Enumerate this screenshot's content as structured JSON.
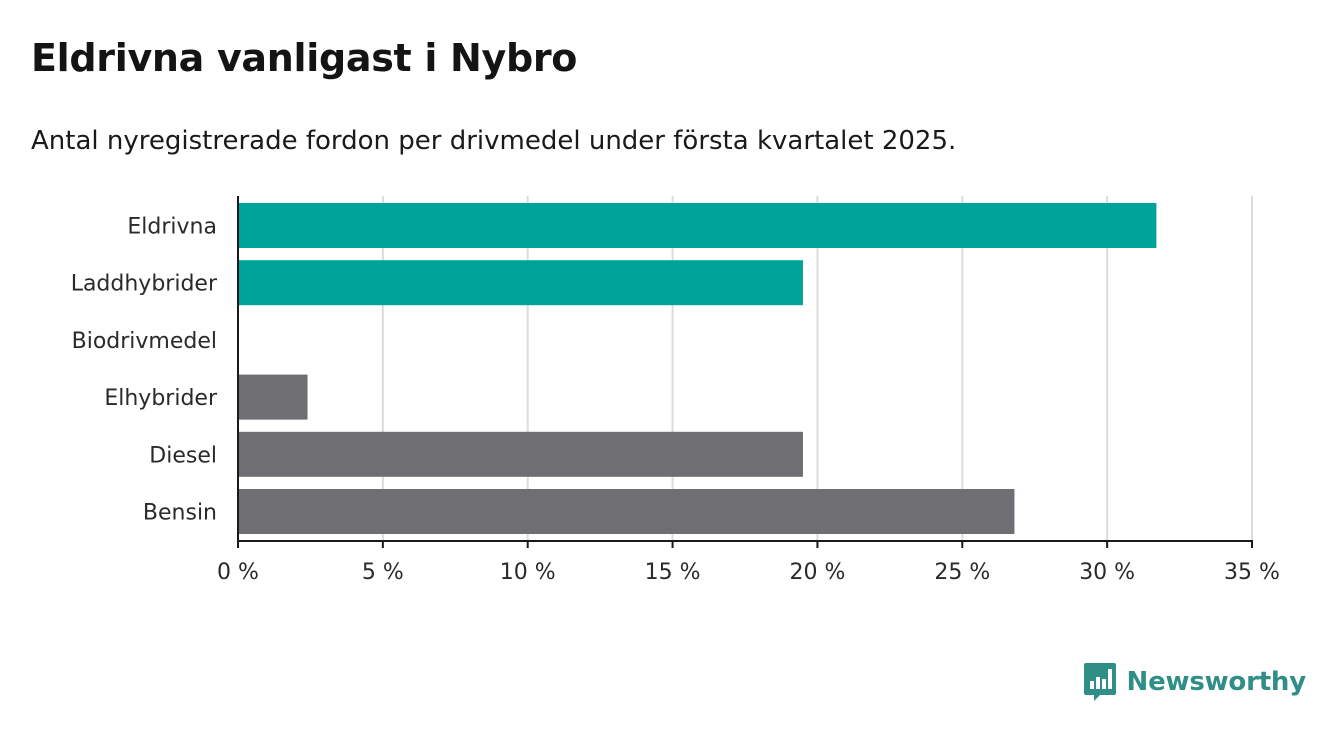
{
  "title": "Eldrivna vanligast i Nybro",
  "subtitle": "Antal nyregistrerade fordon per drivmedel under första kvartalet 2025.",
  "brand": {
    "name": "Newsworthy",
    "icon": "newsworthy-logo-icon",
    "color": "#2f8f86"
  },
  "chart_data": {
    "type": "bar",
    "orientation": "horizontal",
    "categories": [
      "Eldrivna",
      "Laddhybrider",
      "Biodrivmedel",
      "Elhybrider",
      "Diesel",
      "Bensin"
    ],
    "values": [
      31.7,
      19.5,
      0,
      2.4,
      19.5,
      26.8
    ],
    "bar_colors": [
      "#00a399",
      "#00a399",
      "#00a399",
      "#6e6e73",
      "#6e6e73",
      "#6e6e73"
    ],
    "xlim": [
      0,
      35
    ],
    "xticks": [
      0,
      5,
      10,
      15,
      20,
      25,
      30,
      35
    ],
    "tick_suffix": " %",
    "grid": true,
    "xlabel": "",
    "ylabel": ""
  }
}
